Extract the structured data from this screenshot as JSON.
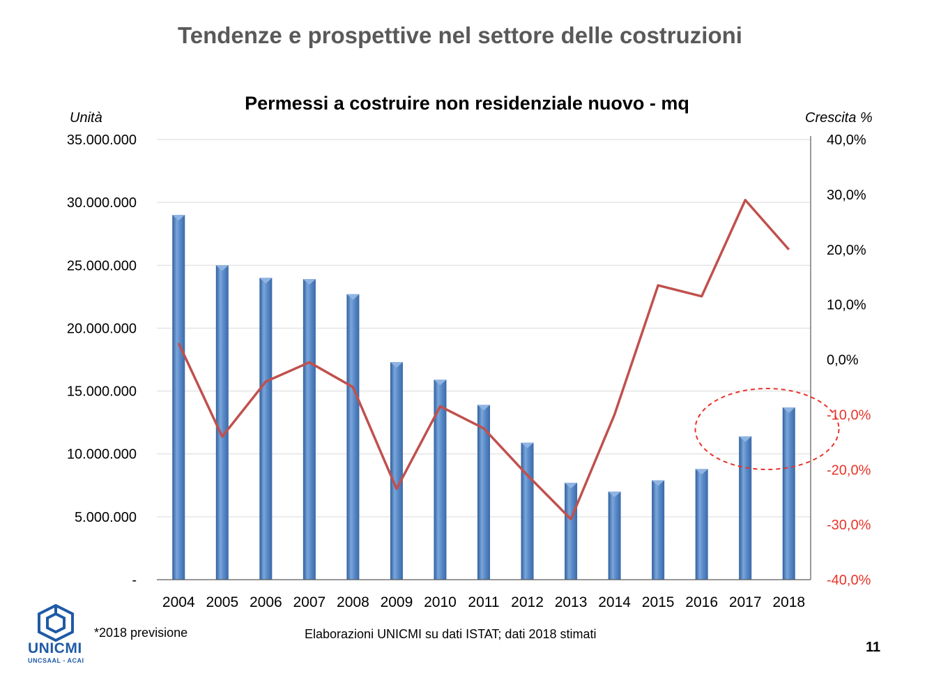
{
  "slide": {
    "title": "Tendenze e prospettive nel settore delle costruzioni",
    "page_number": "11"
  },
  "footer": {
    "note": "*2018 previsione",
    "source": "Elaborazioni UNICMI su dati ISTAT; dati 2018 stimati"
  },
  "logo": {
    "name": "UNICMI",
    "subtitle": "UNCSAAL - ACAI",
    "icon": "unicmi-logo-icon",
    "color": "#1f5aa6"
  },
  "chart_data": {
    "type": "bar",
    "title": "Permessi a costruire non residenziale nuovo - mq",
    "ylabel": "Unità",
    "y2label": "Crescita %",
    "categories": [
      "2004",
      "2005",
      "2006",
      "2007",
      "2008",
      "2009",
      "2010",
      "2011",
      "2012",
      "2013",
      "2014",
      "2015",
      "2016",
      "2017",
      "2018"
    ],
    "ylim": [
      0,
      35000000
    ],
    "y_ticks": [
      0,
      5000000,
      10000000,
      15000000,
      20000000,
      25000000,
      30000000,
      35000000
    ],
    "y_tick_labels": [
      "-",
      "5.000.000",
      "10.000.000",
      "15.000.000",
      "20.000.000",
      "25.000.000",
      "30.000.000",
      "35.000.000"
    ],
    "y2lim": [
      -40,
      40
    ],
    "y2_ticks": [
      -40,
      -30,
      -20,
      -10,
      0,
      10,
      20,
      30,
      40
    ],
    "y2_tick_labels": [
      "-40,0%",
      "-30,0%",
      "-20,0%",
      "-10,0%",
      "0,0%",
      "10,0%",
      "20,0%",
      "30,0%",
      "40,0%"
    ],
    "y2_negative_color": "#e8342a",
    "grid": true,
    "series": [
      {
        "type": "bar",
        "axis": "left",
        "color": "#4f81bd",
        "values": [
          29000000,
          25000000,
          24000000,
          23900000,
          22700000,
          17300000,
          15900000,
          13900000,
          10900000,
          7700000,
          7000000,
          7900000,
          8800000,
          11400000,
          13700000
        ]
      },
      {
        "type": "line",
        "axis": "right",
        "color": "#c0504d",
        "values": [
          3.0,
          -14.0,
          -4.0,
          -0.5,
          -5.0,
          -23.5,
          -8.5,
          -12.5,
          -21.0,
          -29.0,
          -10.0,
          13.5,
          11.5,
          29.0,
          20.0
        ]
      }
    ],
    "annotation": {
      "type": "dashed-ellipse",
      "color": "#e8342a",
      "around_categories": [
        "2017",
        "2018"
      ]
    }
  }
}
